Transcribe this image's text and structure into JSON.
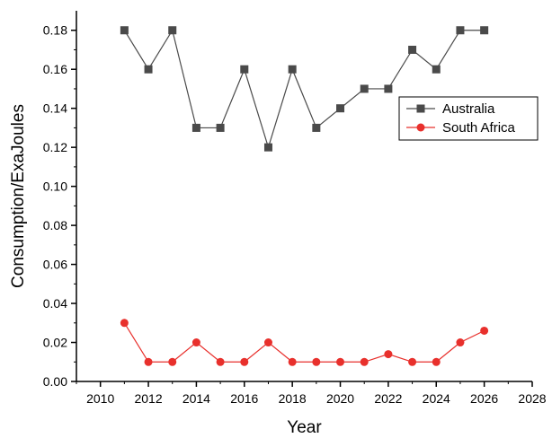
{
  "chart_data": {
    "type": "line",
    "title": "",
    "xlabel": "Year",
    "ylabel": "Consumption/ExaJoules",
    "xlim": [
      2009,
      2028
    ],
    "ylim": [
      0,
      0.19
    ],
    "xticks": [
      2010,
      2012,
      2014,
      2016,
      2018,
      2020,
      2022,
      2024,
      2026,
      2028
    ],
    "xtick_labels": [
      "2010",
      "2012",
      "2014",
      "2016",
      "2018",
      "2020",
      "2022",
      "2024",
      "2026",
      "2028"
    ],
    "yticks": [
      0,
      0.02,
      0.04,
      0.06,
      0.08,
      0.1,
      0.12,
      0.14,
      0.16,
      0.18
    ],
    "ytick_labels": [
      "0.00",
      "0.02",
      "0.04",
      "0.06",
      "0.08",
      "0.10",
      "0.12",
      "0.14",
      "0.16",
      "0.18"
    ],
    "grid": false,
    "legend_position": "top-right",
    "x": [
      2011,
      2012,
      2013,
      2014,
      2015,
      2016,
      2017,
      2018,
      2019,
      2020,
      2021,
      2022,
      2023,
      2024,
      2025,
      2026
    ],
    "series": [
      {
        "name": "Australia",
        "color": "#4a4a4a",
        "marker": "square",
        "values": [
          0.18,
          0.16,
          0.18,
          0.13,
          0.13,
          0.16,
          0.12,
          0.16,
          0.13,
          0.14,
          0.15,
          0.15,
          0.17,
          0.16,
          0.18,
          0.18
        ]
      },
      {
        "name": "South Africa",
        "color": "#e8302c",
        "marker": "circle",
        "values": [
          0.03,
          0.01,
          0.01,
          0.02,
          0.01,
          0.01,
          0.02,
          0.01,
          0.01,
          0.01,
          0.01,
          0.014,
          0.01,
          0.01,
          0.02,
          0.026
        ]
      }
    ]
  }
}
